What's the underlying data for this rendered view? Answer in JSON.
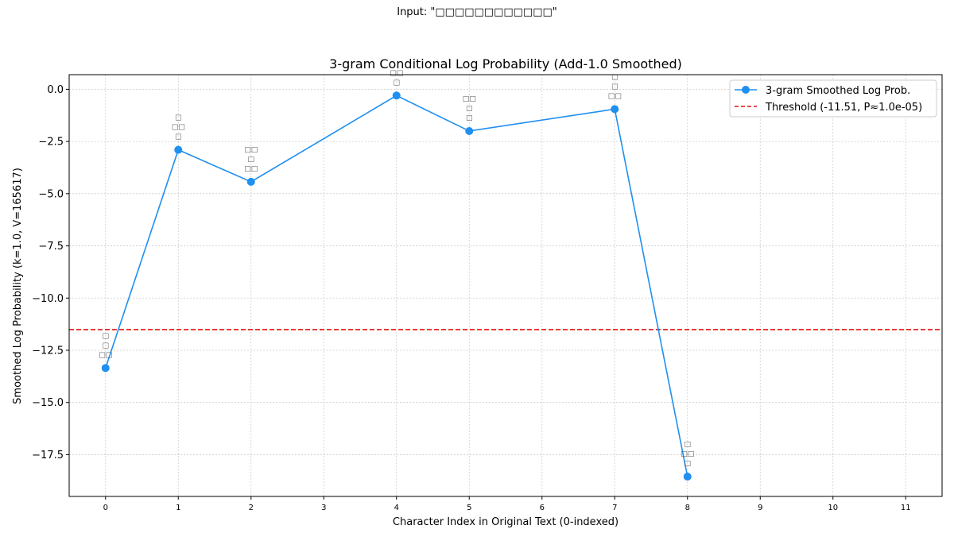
{
  "suptitle": "Input: \"□□□□□□□□□□□□\"",
  "chart_data": {
    "type": "line",
    "title": "3-gram Conditional Log Probability (Add-1.0 Smoothed)",
    "xlabel": "Character Index in Original Text (0-indexed)",
    "ylabel": "Smoothed Log Probability (k=1.0, V=165617)",
    "xlim": [
      -0.5,
      11.5
    ],
    "ylim": [
      -19.5,
      0.7
    ],
    "xticks": [
      0,
      1,
      2,
      3,
      4,
      5,
      6,
      7,
      8,
      9,
      10,
      11
    ],
    "yticks": [
      0.0,
      -2.5,
      -5.0,
      -7.5,
      -10.0,
      -12.5,
      -15.0,
      -17.5
    ],
    "ytick_labels": [
      "0.0",
      "−2.5",
      "−5.0",
      "−7.5",
      "−10.0",
      "−12.5",
      "−15.0",
      "−17.5"
    ],
    "grid": true,
    "legend_position": "top-right",
    "series": [
      {
        "name": "3-gram Smoothed Log Prob.",
        "color": "#1f8ff0",
        "x": [
          0,
          1,
          2,
          4,
          5,
          7,
          8
        ],
        "y": [
          -13.35,
          -2.9,
          -4.43,
          -0.3,
          -2.0,
          -0.95,
          -18.55
        ],
        "annotations": [
          [
            "□",
            "□",
            "□□"
          ],
          [
            "□",
            "□□",
            "□"
          ],
          [
            "□□",
            "□",
            "□□"
          ],
          [
            "□□",
            "□"
          ],
          [
            "□□",
            "□",
            "□"
          ],
          [
            "□",
            "□",
            "□□"
          ],
          [
            "□",
            "□□",
            "□"
          ]
        ]
      }
    ],
    "threshold": {
      "name": "Threshold (-11.51, P≈1.0e-05)",
      "value": -11.51,
      "color": "#e01010"
    }
  }
}
